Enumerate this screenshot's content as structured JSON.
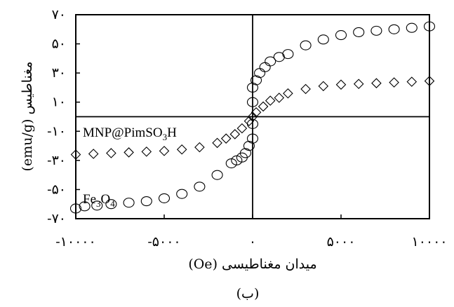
{
  "chart_data": {
    "type": "scatter",
    "xlabel": "میدان مغناطیسی (Oe)",
    "ylabel": "مغناطیس (emu/g)",
    "caption": "(ب)",
    "xlim": [
      -10000,
      10000
    ],
    "ylim": [
      -70,
      70
    ],
    "x_ticks": [
      -10000,
      -5000,
      0,
      5000,
      10000
    ],
    "x_tick_labels": [
      "-۱۰۰۰۰",
      "-۵۰۰۰",
      "۰",
      "۵۰۰۰",
      "۱۰۰۰۰"
    ],
    "y_ticks": [
      70,
      50,
      30,
      10,
      -10,
      -30,
      -50,
      -70
    ],
    "y_tick_labels": [
      "۷۰",
      "۵۰",
      "۳۰",
      "۱۰",
      "-۱۰",
      "-۳۰",
      "-۵۰",
      "-۷۰"
    ],
    "grid": false,
    "series": [
      {
        "name": "Fe3O4",
        "marker": "circle",
        "annotation": {
          "main": "Fe",
          "sub1": "3",
          "mid": "O",
          "sub2": "4"
        },
        "x": [
          -10000,
          -9500,
          -8800,
          -8000,
          -7000,
          -6000,
          -5000,
          -4000,
          -3000,
          -2000,
          -1200,
          -900,
          -600,
          -400,
          -200,
          0,
          0,
          0,
          0,
          200,
          400,
          700,
          1000,
          1500,
          2000,
          3000,
          4000,
          5000,
          6000,
          7000,
          8000,
          9000,
          10000
        ],
        "y": [
          -63,
          -61.5,
          -61,
          -60,
          -59,
          -58,
          -56,
          -53,
          -48,
          -40,
          -32,
          -30,
          -28,
          -25,
          -20,
          -15,
          -5,
          10,
          20,
          25,
          30,
          34,
          38,
          41,
          43,
          49,
          53,
          56,
          58,
          59,
          60,
          61,
          62
        ]
      },
      {
        "name": "MNP@PimSO3H",
        "marker": "diamond",
        "annotation": {
          "main": "MNP@PimSO",
          "sub1": "3",
          "mid": "H",
          "sub2": ""
        },
        "x": [
          -10000,
          -9000,
          -8000,
          -7000,
          -6000,
          -5000,
          -4000,
          -3000,
          -2000,
          -1500,
          -1000,
          -600,
          -200,
          0,
          200,
          600,
          1000,
          1500,
          2000,
          3000,
          4000,
          5000,
          6000,
          7000,
          8000,
          9000,
          10000
        ],
        "y": [
          -26,
          -25.5,
          -25,
          -24.5,
          -24,
          -23.5,
          -22.5,
          -21,
          -18,
          -15,
          -12,
          -8,
          -3,
          0,
          3,
          7,
          11,
          13,
          16,
          19,
          21,
          22,
          22.5,
          23,
          23.5,
          24,
          24.5
        ]
      }
    ]
  }
}
